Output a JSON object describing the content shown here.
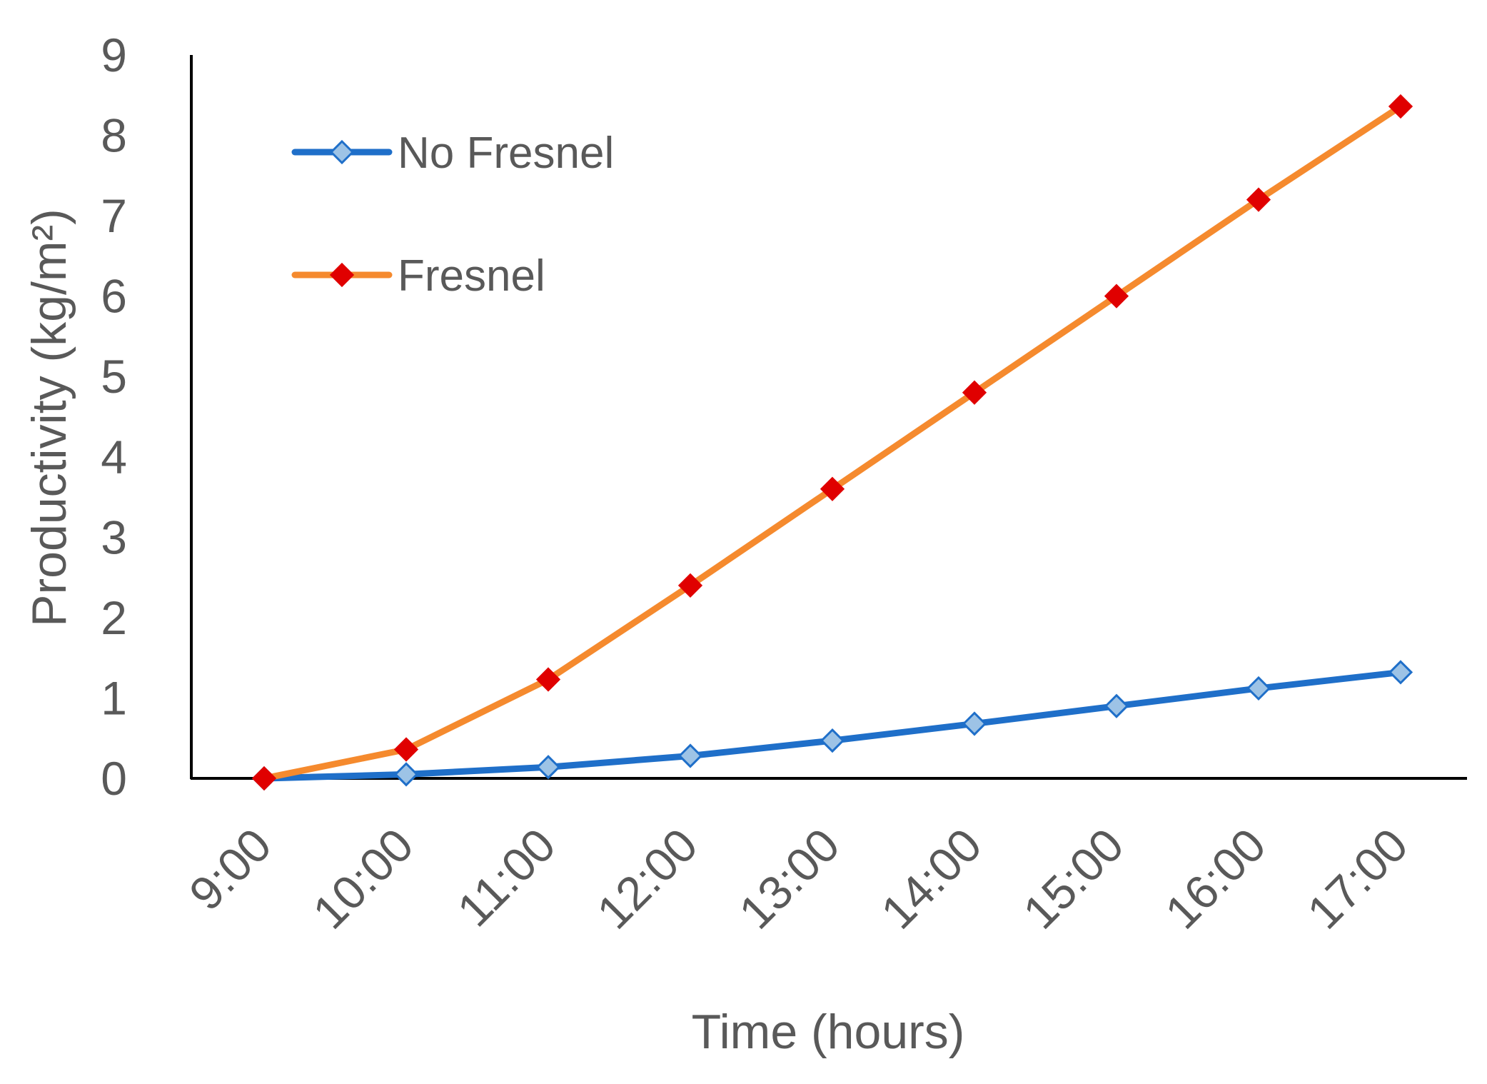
{
  "chart_data": {
    "type": "line",
    "title": "",
    "xlabel": "Time (hours)",
    "ylabel": "Productivity (kg/m²)",
    "ylim": [
      0,
      9
    ],
    "yticks": [
      0,
      1,
      2,
      3,
      4,
      5,
      6,
      7,
      8,
      9
    ],
    "categories": [
      "9:00",
      "10:00",
      "11:00",
      "12:00",
      "13:00",
      "14:00",
      "15:00",
      "16:00",
      "17:00"
    ],
    "grid": false,
    "legend_position": "top-left",
    "series": [
      {
        "name": "No Fresnel",
        "color": "#1f6fc9",
        "marker_color": "#9dc3e6",
        "marker": "diamond",
        "values": [
          0,
          0.05,
          0.14,
          0.28,
          0.47,
          0.68,
          0.9,
          1.12,
          1.32
        ]
      },
      {
        "name": "Fresnel",
        "color": "#f58a2e",
        "marker_color": "#e00000",
        "marker": "diamond",
        "values": [
          0,
          0.36,
          1.23,
          2.4,
          3.6,
          4.8,
          6.0,
          7.2,
          8.36
        ]
      }
    ]
  }
}
